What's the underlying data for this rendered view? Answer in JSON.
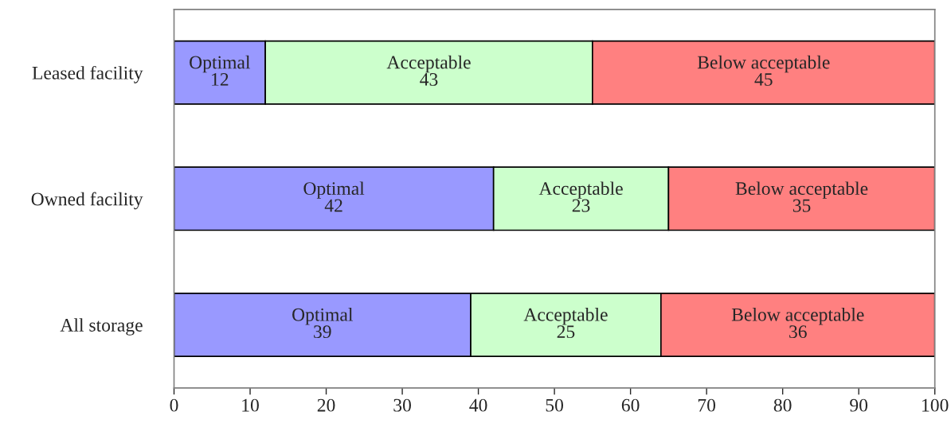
{
  "chart_data": {
    "type": "bar",
    "orientation": "horizontal",
    "stacked": true,
    "categories": [
      "Leased facility",
      "Owned facility",
      "All storage"
    ],
    "series": [
      {
        "name": "Optimal",
        "color": "#9999ff",
        "values": [
          12,
          42,
          39
        ]
      },
      {
        "name": "Acceptable",
        "color": "#ccffcc",
        "values": [
          43,
          23,
          25
        ]
      },
      {
        "name": "Below acceptable",
        "color": "#ff8080",
        "values": [
          45,
          35,
          36
        ]
      }
    ],
    "xlim": [
      0,
      100
    ],
    "xticks": [
      0,
      10,
      20,
      30,
      40,
      50,
      60,
      70,
      80,
      90,
      100
    ],
    "data_labels": true,
    "grid": false,
    "legend": false
  }
}
